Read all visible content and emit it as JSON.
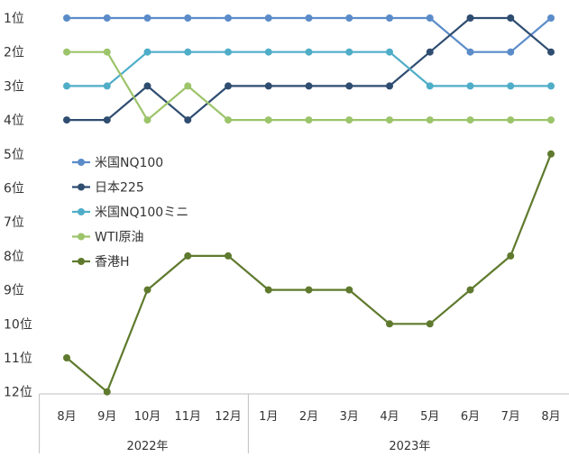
{
  "chart_data": {
    "type": "line",
    "title": "",
    "xlabel": "",
    "ylabel": "",
    "y_axis": {
      "reversed": true,
      "range": [
        1,
        12
      ],
      "tick_labels": [
        "1位",
        "2位",
        "3位",
        "4位",
        "5位",
        "6位",
        "7位",
        "8位",
        "9位",
        "10位",
        "11位",
        "12位"
      ]
    },
    "categories": [
      "8月",
      "9月",
      "10月",
      "11月",
      "12月",
      "1月",
      "2月",
      "3月",
      "4月",
      "5月",
      "6月",
      "7月",
      "8月"
    ],
    "year_groups": [
      {
        "label": "2022年",
        "start": 0,
        "end": 4
      },
      {
        "label": "2023年",
        "start": 5,
        "end": 12
      }
    ],
    "grid": false,
    "legend_position": "left-middle",
    "series": [
      {
        "name": "米国NQ100",
        "color": "#5b8cc9",
        "values": [
          1,
          1,
          1,
          1,
          1,
          1,
          1,
          1,
          1,
          1,
          2,
          2,
          1
        ]
      },
      {
        "name": "日本225",
        "color": "#2f4d71",
        "values": [
          4,
          4,
          3,
          4,
          3,
          3,
          3,
          3,
          3,
          2,
          1,
          1,
          2
        ]
      },
      {
        "name": "米国NQ100ミニ",
        "color": "#4fadc8",
        "values": [
          3,
          3,
          2,
          2,
          2,
          2,
          2,
          2,
          2,
          3,
          3,
          3,
          3
        ]
      },
      {
        "name": "WTI原油",
        "color": "#9cc46a",
        "values": [
          2,
          2,
          4,
          3,
          4,
          4,
          4,
          4,
          4,
          4,
          4,
          4,
          4
        ]
      },
      {
        "name": "香港H",
        "color": "#5f7a2e",
        "values": [
          11,
          12,
          9,
          8,
          8,
          9,
          9,
          9,
          10,
          10,
          9,
          8,
          5
        ]
      }
    ]
  }
}
